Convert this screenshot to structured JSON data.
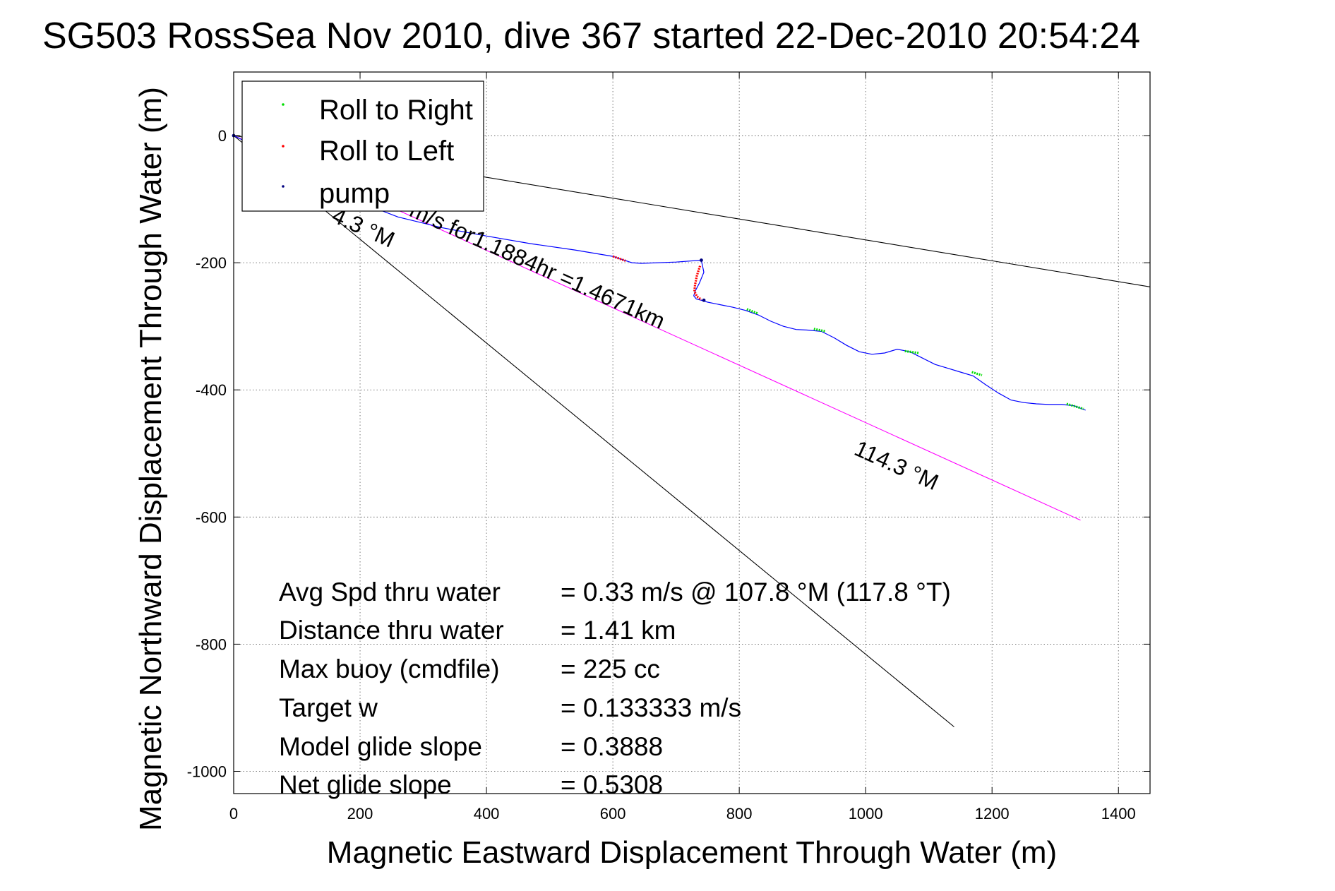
{
  "chart_data": {
    "type": "line",
    "title": "SG503 RossSea Nov 2010, dive 367 started 22-Dec-2010 20:54:24",
    "xlabel": "Magnetic Eastward Displacement Through Water (m)",
    "ylabel": "Magnetic Northward Displacement Through Water (m)",
    "xlim": [
      0,
      1450
    ],
    "ylim": [
      -1035,
      100
    ],
    "xticks": [
      0,
      200,
      400,
      600,
      800,
      1000,
      1200,
      1400
    ],
    "yticks": [
      0,
      -200,
      -400,
      -600,
      -800,
      -1000
    ],
    "xtick_labels": [
      "0",
      "200",
      "400",
      "600",
      "800",
      "1000",
      "1200",
      "1400"
    ],
    "ytick_labels": [
      "0",
      "-200",
      "-400",
      "-600",
      "-800",
      "-1000"
    ],
    "grid": true,
    "legend_position": "top-left",
    "legend": [
      {
        "label": "Roll to Right",
        "color": "#00dd00"
      },
      {
        "label": "Roll to Left",
        "color": "#ff0000"
      },
      {
        "label": "pump",
        "color": "#000080"
      }
    ],
    "track": {
      "color": "#0000ff",
      "x": [
        0,
        20,
        50,
        80,
        100,
        140,
        200,
        260,
        330,
        400,
        470,
        540,
        600,
        615,
        630,
        645,
        700,
        740,
        744,
        737,
        730,
        728,
        732,
        740,
        750,
        770,
        790,
        810,
        830,
        850,
        870,
        890,
        910,
        930,
        950,
        970,
        990,
        1010,
        1030,
        1050,
        1070,
        1090,
        1110,
        1130,
        1150,
        1170,
        1190,
        1210,
        1230,
        1250,
        1270,
        1290,
        1310,
        1330,
        1348
      ],
      "y": [
        0,
        -10,
        -28,
        -50,
        -63,
        -81,
        -105,
        -128,
        -145,
        -158,
        -170,
        -180,
        -190,
        -195,
        -200,
        -201,
        -199,
        -196,
        -215,
        -232,
        -245,
        -252,
        -257,
        -259,
        -262,
        -266,
        -270,
        -275,
        -282,
        -292,
        -300,
        -305,
        -306,
        -308,
        -318,
        -330,
        -340,
        -344,
        -342,
        -336,
        -340,
        -350,
        -360,
        -366,
        -372,
        -378,
        -392,
        -405,
        -416,
        -420,
        -422,
        -423,
        -423,
        -425,
        -432
      ]
    },
    "roll_right_segments": [
      {
        "x": [
          812,
          830
        ],
        "y": [
          -273,
          -280
        ]
      },
      {
        "x": [
          918,
          937
        ],
        "y": [
          -304,
          -308
        ]
      },
      {
        "x": [
          1062,
          1084
        ],
        "y": [
          -339,
          -342
        ]
      },
      {
        "x": [
          1168,
          1184
        ],
        "y": [
          -372,
          -377
        ]
      },
      {
        "x": [
          1318,
          1345
        ],
        "y": [
          -422,
          -430
        ]
      }
    ],
    "roll_left_segments": [
      {
        "x": [
          600,
          620
        ],
        "y": [
          -190,
          -197
        ]
      },
      {
        "x": [
          738,
          733,
          730,
          729,
          733,
          740
        ],
        "y": [
          -205,
          -220,
          -235,
          -245,
          -253,
          -258
        ]
      }
    ],
    "pump_points": [
      {
        "x": 0,
        "y": 0
      },
      {
        "x": 740,
        "y": -196
      },
      {
        "x": 744,
        "y": -259
      }
    ],
    "reference_lines": [
      {
        "name": "upper",
        "color": "#000000",
        "x": [
          0,
          1450
        ],
        "y": [
          0,
          -238
        ]
      },
      {
        "name": "lower",
        "color": "#000000",
        "x": [
          0,
          1140
        ],
        "y": [
          0,
          -930
        ]
      },
      {
        "name": "heading",
        "color": "#ff00ff",
        "x": [
          0,
          1340
        ],
        "y": [
          0,
          -605
        ]
      }
    ],
    "annotations": {
      "heading_partial": "4.3 °M",
      "heading_upper": "m/s for1.1884hr =1.4671km",
      "heading_lower": "114.3 °M"
    },
    "stats": [
      {
        "name": "Avg Spd thru water",
        "value": "=  0.33 m/s @ 107.8 °M (117.8 °T)"
      },
      {
        "name": "Distance thru water",
        "value": "=  1.41 km"
      },
      {
        "name": "Max buoy (cmdfile)",
        "value": "= 225 cc"
      },
      {
        "name": "Target w",
        "value": "= 0.133333 m/s"
      },
      {
        "name": "Model glide slope",
        "value": "= 0.3888"
      },
      {
        "name": "Net glide slope",
        "value": "= 0.5308"
      }
    ]
  }
}
